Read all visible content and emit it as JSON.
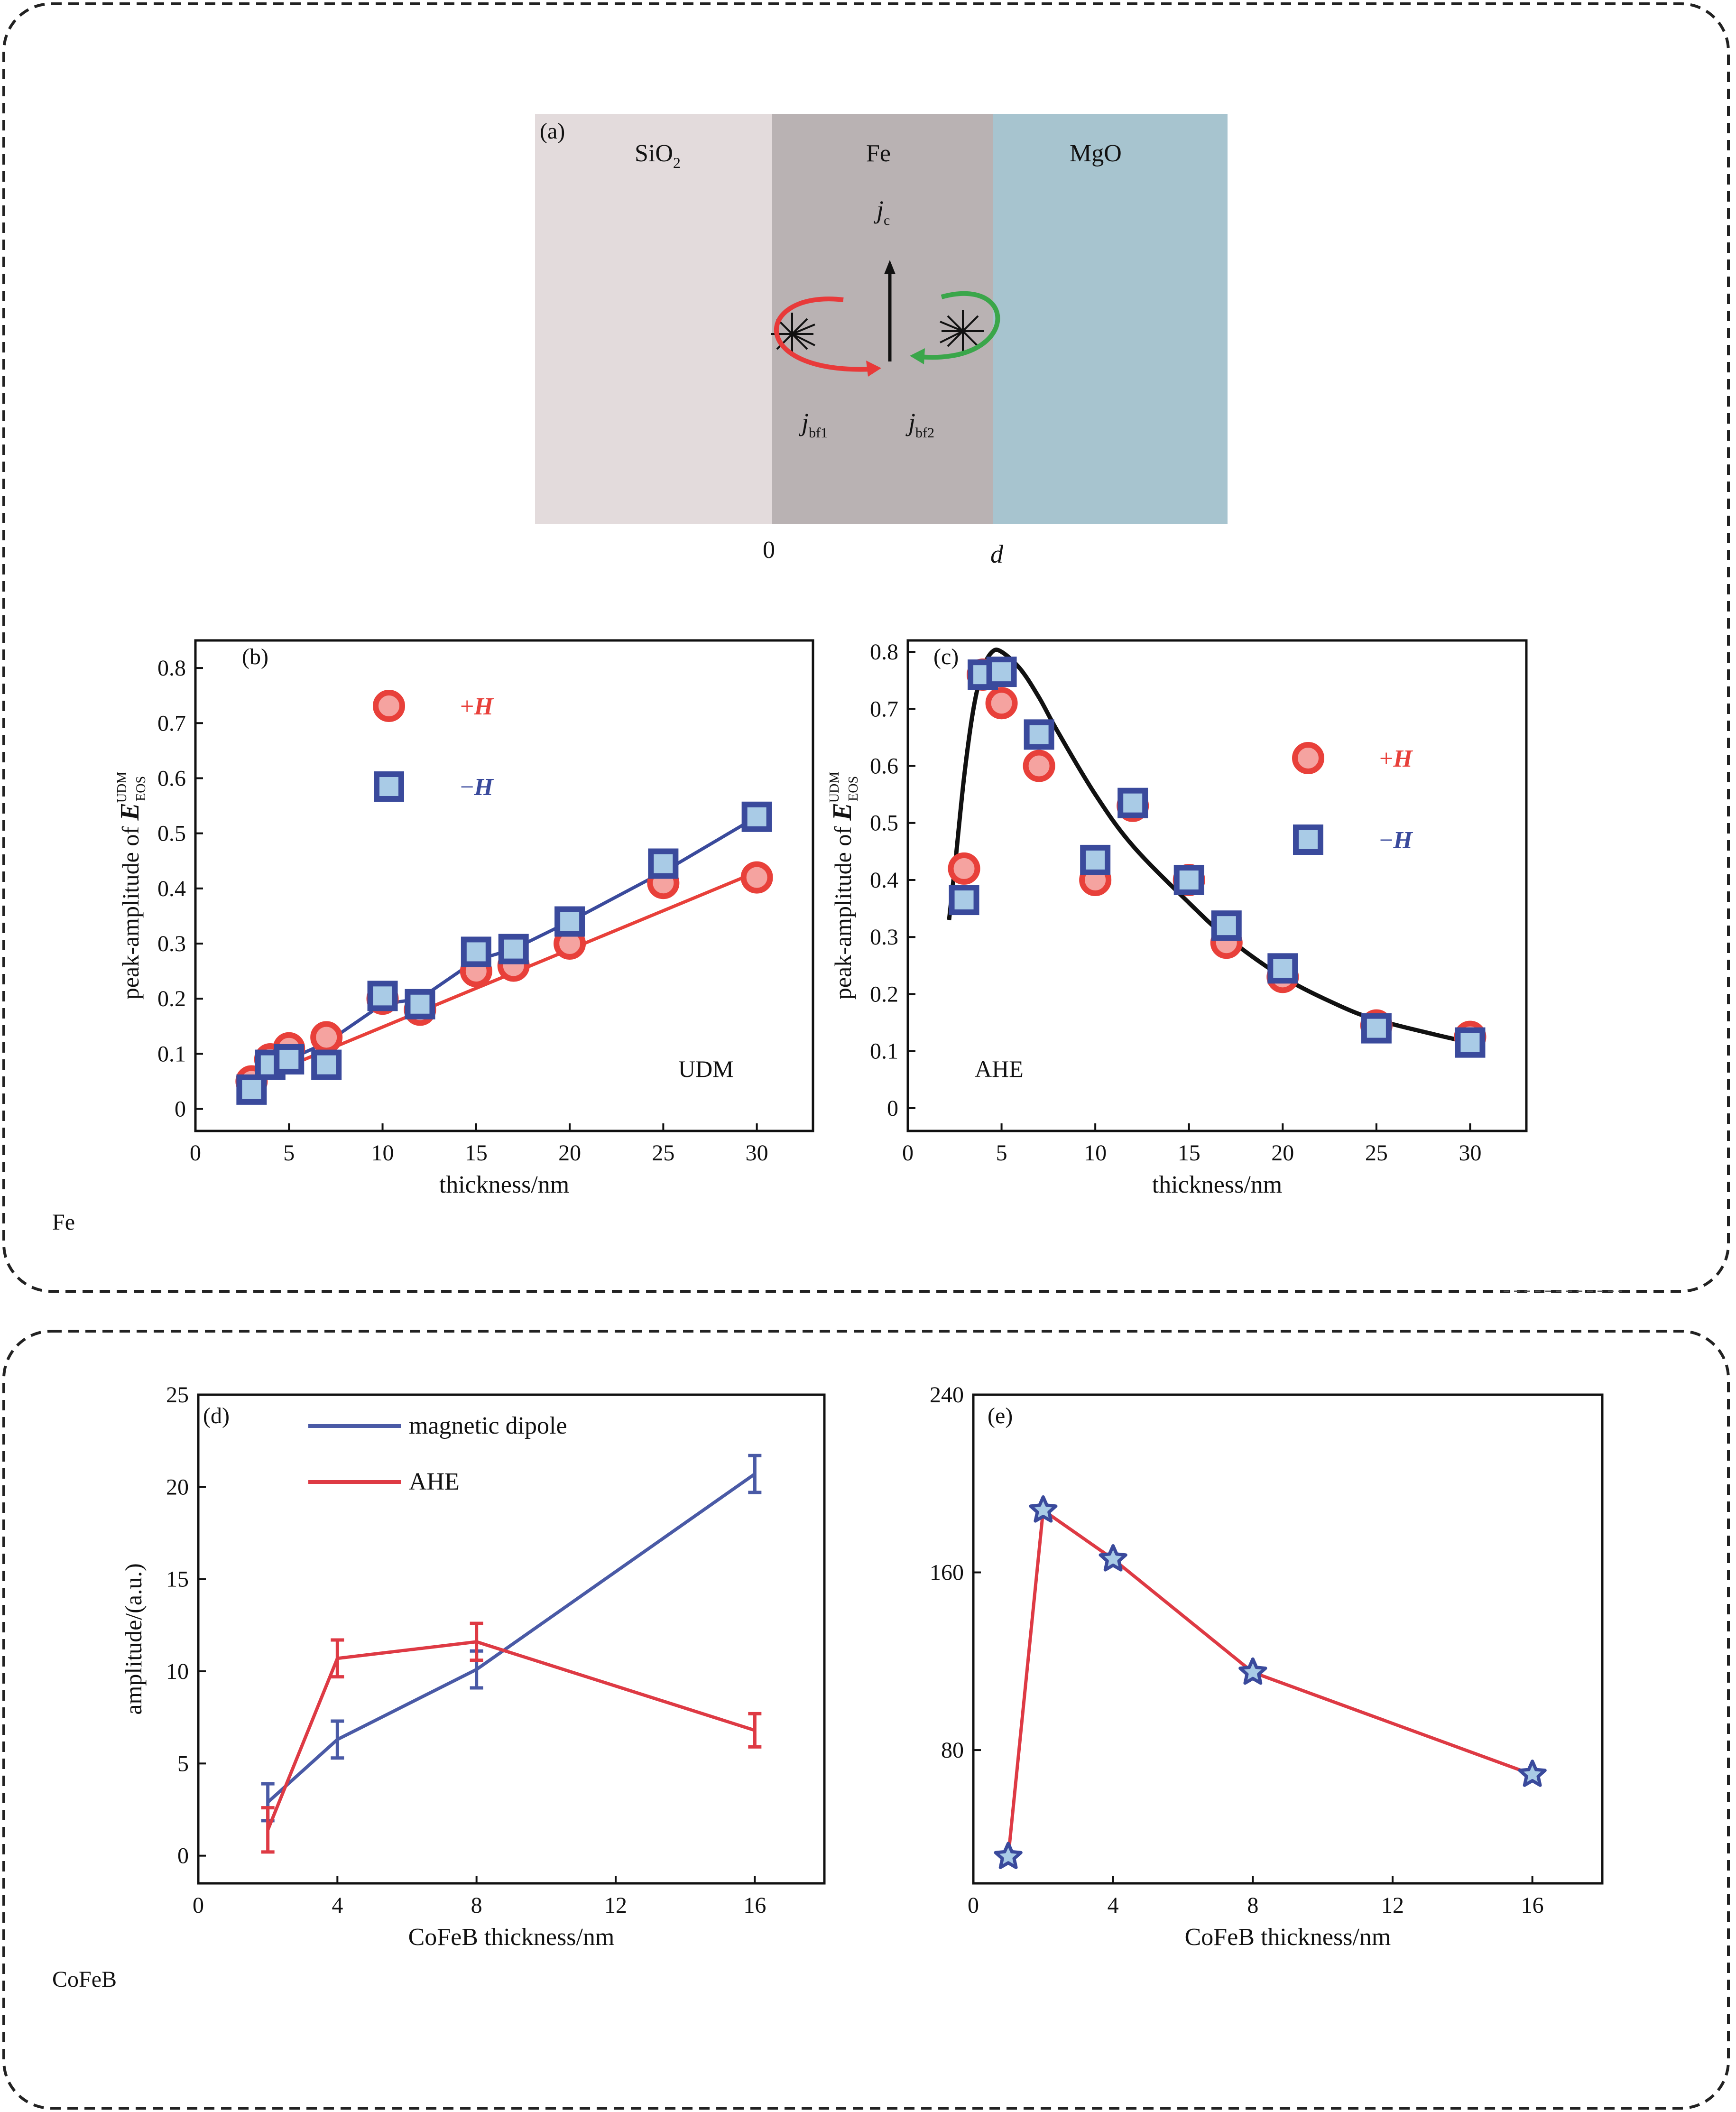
{
  "groups": {
    "fe_label": "Fe",
    "cofeb_label": "CoFeB"
  },
  "schematic": {
    "panel_label": "(a)",
    "layers": [
      {
        "name": "SiO",
        "sub": "2",
        "color": "#e3dbdc"
      },
      {
        "name": "Fe",
        "sub": "",
        "color": "#b9b2b3"
      },
      {
        "name": "MgO",
        "sub": "",
        "color": "#a7c4cf"
      }
    ],
    "jc": {
      "main": "j",
      "sub": "c"
    },
    "jbf1": {
      "main": "j",
      "sub": "bf1"
    },
    "jbf2": {
      "main": "j",
      "sub": "bf2"
    },
    "x0_label": "0",
    "xd_label": "d",
    "arrow_colors": {
      "left": "#e83a3a",
      "right": "#3aa64a"
    }
  },
  "colors": {
    "red": "#e8403a",
    "red_fill": "#f5a3a0",
    "blue": "#3a4a9c",
    "blue_fill": "#a9cbe6",
    "dipole_line": "#4a5aa6",
    "ahe_line": "#de3a44",
    "star_fill": "#a9cbe6",
    "star_line": "#de3a44",
    "fit": "#111111"
  },
  "chart_data": [
    {
      "id": "b",
      "type": "line",
      "panel_label": "(b)",
      "annotation": "UDM",
      "xlabel": "thickness/nm",
      "ylabel": {
        "pre": "peak-amplitude of ",
        "var": "E",
        "sup": "UDM",
        "sub": "EOS"
      },
      "xlim": [
        0,
        33
      ],
      "ylim": [
        -0.04,
        0.85
      ],
      "xticks": [
        0,
        5,
        10,
        15,
        20,
        25,
        30
      ],
      "yticks": [
        0,
        0.1,
        0.2,
        0.3,
        0.4,
        0.5,
        0.6,
        0.7,
        0.8
      ],
      "legend": [
        {
          "label": "+",
          "italic": "H",
          "marker": "circle"
        },
        {
          "label": "−",
          "italic": "H",
          "marker": "square"
        }
      ],
      "series": [
        {
          "name": "+H",
          "marker": "circle",
          "x": [
            3,
            4,
            5,
            7,
            10,
            12,
            15,
            17,
            20,
            25,
            30
          ],
          "y": [
            0.05,
            0.09,
            0.11,
            0.13,
            0.2,
            0.18,
            0.25,
            0.26,
            0.3,
            0.41,
            0.42
          ],
          "fit": {
            "x": [
              3,
              30
            ],
            "y": [
              0.05,
              0.43
            ]
          }
        },
        {
          "name": "−H",
          "marker": "square",
          "x": [
            3,
            4,
            5,
            7,
            10,
            12,
            15,
            17,
            20,
            25,
            30
          ],
          "y": [
            0.035,
            0.08,
            0.09,
            0.08,
            0.205,
            0.19,
            0.285,
            0.29,
            0.34,
            0.445,
            0.53
          ],
          "fit": {
            "x": [
              3,
              5,
              7,
              10,
              12,
              15,
              17,
              20,
              25,
              30
            ],
            "y": [
              0.035,
              0.09,
              0.12,
              0.19,
              0.2,
              0.27,
              0.29,
              0.34,
              0.43,
              0.53
            ]
          }
        }
      ]
    },
    {
      "id": "c",
      "type": "scatter",
      "panel_label": "(c)",
      "annotation": "AHE",
      "xlabel": "thickness/nm",
      "ylabel": {
        "pre": "peak-amplitude of ",
        "var": "E",
        "sup": "UDM",
        "sub": "EOS"
      },
      "xlim": [
        0,
        33
      ],
      "ylim": [
        -0.04,
        0.82
      ],
      "xticks": [
        0,
        5,
        10,
        15,
        20,
        25,
        30
      ],
      "yticks": [
        0,
        0.1,
        0.2,
        0.3,
        0.4,
        0.5,
        0.6,
        0.7,
        0.8
      ],
      "legend": [
        {
          "label": "+",
          "italic": "H",
          "marker": "circle"
        },
        {
          "label": "−",
          "italic": "H",
          "marker": "square"
        }
      ],
      "series": [
        {
          "name": "+H",
          "marker": "circle",
          "x": [
            3,
            4,
            5,
            7,
            10,
            12,
            15,
            17,
            20,
            25,
            30
          ],
          "y": [
            0.42,
            0.76,
            0.71,
            0.6,
            0.4,
            0.53,
            0.4,
            0.29,
            0.23,
            0.145,
            0.125
          ]
        },
        {
          "name": "−H",
          "marker": "square",
          "x": [
            3,
            4,
            5,
            7,
            10,
            12,
            15,
            17,
            20,
            25,
            30
          ],
          "y": [
            0.365,
            0.76,
            0.765,
            0.655,
            0.435,
            0.535,
            0.4,
            0.32,
            0.245,
            0.14,
            0.115
          ]
        }
      ],
      "fit": {
        "x": [
          2.2,
          2.5,
          3,
          3.5,
          4,
          4.5,
          5,
          6,
          7,
          8,
          10,
          12,
          15,
          17,
          20,
          23,
          25,
          28,
          30
        ],
        "y": [
          0.33,
          0.42,
          0.58,
          0.7,
          0.77,
          0.8,
          0.8,
          0.77,
          0.72,
          0.66,
          0.55,
          0.46,
          0.36,
          0.3,
          0.23,
          0.18,
          0.155,
          0.13,
          0.115
        ]
      }
    },
    {
      "id": "d",
      "type": "line",
      "panel_label": "(d)",
      "xlabel": "CoFeB thickness/nm",
      "ylabel": {
        "pre": "amplitude/(a.u.)"
      },
      "xlim": [
        0,
        18
      ],
      "ylim": [
        -1.5,
        25
      ],
      "xticks": [
        0,
        4,
        8,
        12,
        16
      ],
      "yticks": [
        0,
        5,
        10,
        15,
        20,
        25
      ],
      "legend": [
        {
          "label": "magnetic dipole",
          "marker": "line-blue"
        },
        {
          "label": "AHE",
          "marker": "line-red"
        }
      ],
      "series": [
        {
          "name": "magnetic dipole",
          "x": [
            2,
            4,
            8,
            16
          ],
          "y": [
            2.9,
            6.3,
            10.1,
            20.7
          ],
          "err": [
            1.0,
            1.0,
            1.0,
            1.0
          ]
        },
        {
          "name": "AHE",
          "x": [
            2,
            4,
            8,
            16
          ],
          "y": [
            1.4,
            10.7,
            11.6,
            6.8
          ],
          "err": [
            1.2,
            1.0,
            1.0,
            0.9
          ]
        }
      ]
    },
    {
      "id": "e",
      "type": "line",
      "panel_label": "(e)",
      "xlabel": "CoFeB thickness/nm",
      "ylabel": {
        "pre": ""
      },
      "xlim": [
        0,
        18
      ],
      "ylim": [
        20,
        240
      ],
      "xticks": [
        0,
        4,
        8,
        12,
        16
      ],
      "yticks": [
        80,
        160,
        240
      ],
      "series": [
        {
          "name": "",
          "marker": "star",
          "x": [
            1,
            2,
            4,
            8,
            16
          ],
          "y": [
            32,
            188,
            166,
            115,
            69
          ]
        }
      ]
    }
  ]
}
